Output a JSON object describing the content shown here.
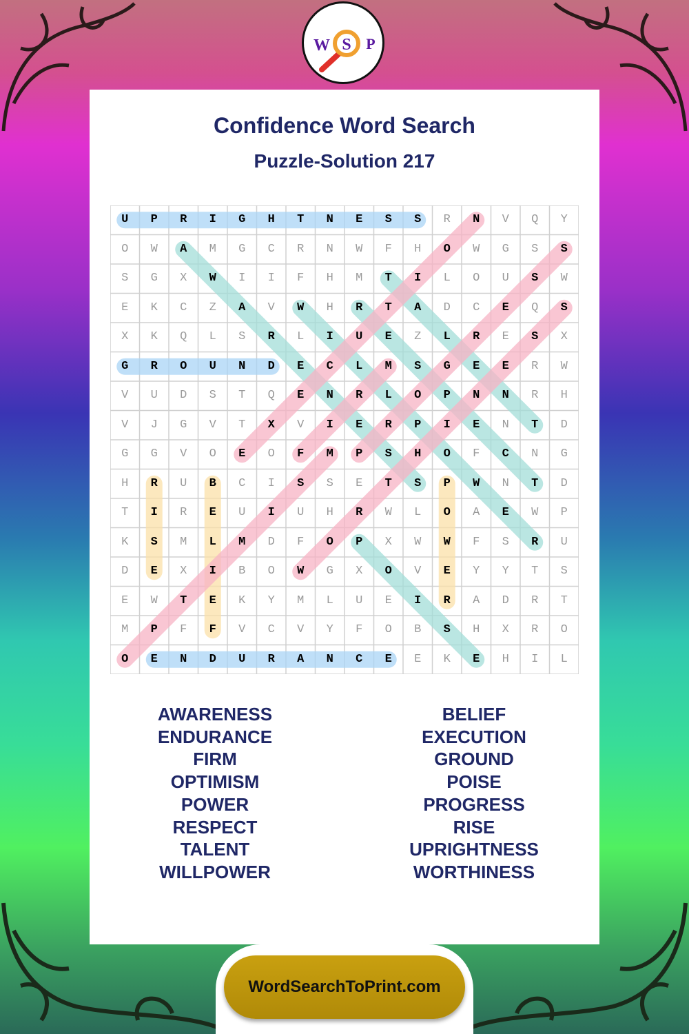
{
  "logo": {
    "letters": [
      "W",
      "S",
      "P"
    ]
  },
  "title": "Confidence Word Search",
  "subtitle": "Puzzle-Solution 217",
  "grid": [
    "UPRIGHTNESSRNVQY",
    "OWAMGCRNWFHOWGSS",
    "SGXWIIFHMTILOUSW",
    "EKCZAVWHRTADCEQS",
    "XKQLSRLIUEZLRESX",
    "GROUNDECLMSGEERW",
    "VUDSTQENRLOPNNRH",
    "VJGVTXVIERPIENTD",
    "GGVOEOFMPSHOFCNG",
    "HRUBCISSETSPWNTD",
    "TIREUIUHRWLOAEWP",
    "KSMLMDFOPXWWFSRU",
    "DEXIBOWGXOVEYYTS",
    "EWTEKYMLUEIRADRT",
    "MPFFVCVYFOBSHXRO",
    "OENDURANCEEKEHIL"
  ],
  "highlight_colors": {
    "blue": "#a9d4f5",
    "teal": "#a3ddd8",
    "pink": "#f7b3c4",
    "yellow": "#fbe0a8"
  },
  "solutions": [
    {
      "word": "UPRIGHTNESS",
      "from": [
        0,
        0
      ],
      "to": [
        0,
        10
      ],
      "color": "blue"
    },
    {
      "word": "GROUND",
      "from": [
        5,
        0
      ],
      "to": [
        5,
        5
      ],
      "color": "blue"
    },
    {
      "word": "ENDURANCE",
      "from": [
        15,
        1
      ],
      "to": [
        15,
        9
      ],
      "color": "blue"
    },
    {
      "word": "RISE",
      "from": [
        9,
        1
      ],
      "to": [
        12,
        1
      ],
      "color": "yellow"
    },
    {
      "word": "BELIEF",
      "from": [
        9,
        3
      ],
      "to": [
        14,
        3
      ],
      "color": "yellow"
    },
    {
      "word": "POWER",
      "from": [
        9,
        11
      ],
      "to": [
        13,
        11
      ],
      "color": "yellow"
    },
    {
      "word": "AWARENESS",
      "from": [
        1,
        2
      ],
      "to": [
        9,
        10
      ],
      "color": "teal"
    },
    {
      "word": "WILLPOWER",
      "from": [
        3,
        6
      ],
      "to": [
        11,
        14
      ],
      "color": "teal"
    },
    {
      "word": "TALENT",
      "from": [
        2,
        9
      ],
      "to": [
        7,
        14
      ],
      "color": "teal"
    },
    {
      "word": "RESPECT",
      "from": [
        3,
        8
      ],
      "to": [
        9,
        14
      ],
      "color": "teal"
    },
    {
      "word": "POISE",
      "from": [
        11,
        8
      ],
      "to": [
        15,
        12
      ],
      "color": "teal"
    },
    {
      "word": "EXECUTION",
      "from": [
        8,
        4
      ],
      "to": [
        0,
        12
      ],
      "color": "pink"
    },
    {
      "word": "PROGRESS",
      "from": [
        8,
        8
      ],
      "to": [
        1,
        15
      ],
      "color": "pink"
    },
    {
      "word": "WORTHINESS",
      "from": [
        12,
        6
      ],
      "to": [
        3,
        15
      ],
      "color": "pink"
    },
    {
      "word": "OPTIMISM",
      "from": [
        15,
        0
      ],
      "to": [
        8,
        7
      ],
      "color": "pink"
    },
    {
      "word": "FIRM",
      "from": [
        8,
        6
      ],
      "to": [
        5,
        9
      ],
      "color": "pink"
    }
  ],
  "word_list_left": [
    "AWARENESS",
    "ENDURANCE",
    "FIRM",
    "OPTIMISM",
    "POWER",
    "RESPECT",
    "TALENT",
    "WILLPOWER"
  ],
  "word_list_right": [
    "BELIEF",
    "EXECUTION",
    "GROUND",
    "POISE",
    "PROGRESS",
    "RISE",
    "UPRIGHTNESS",
    "WORTHINESS"
  ],
  "footer": {
    "link_label": "WordSearchToPrint.com"
  }
}
